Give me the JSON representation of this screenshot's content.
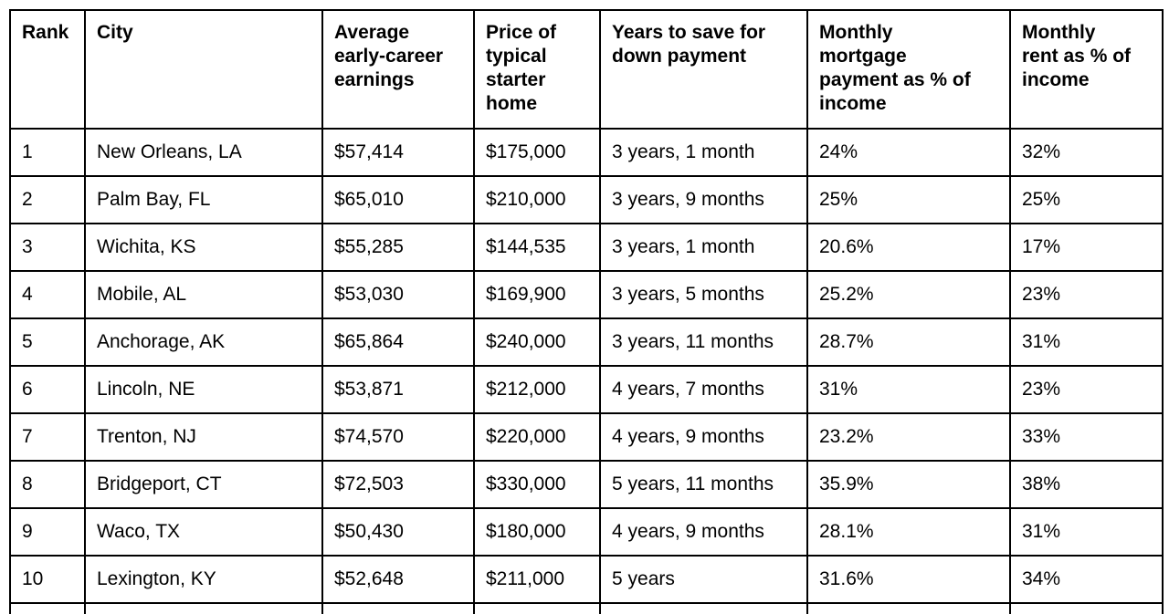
{
  "chart_data": {
    "type": "table",
    "title": "",
    "columns": [
      "Rank",
      "City",
      "Average early-career earnings",
      "Price of typical starter home",
      "Years to save for down payment",
      "Monthly mortgage payment as % of income",
      "Monthly rent as % of income"
    ],
    "rows": [
      [
        "1",
        "New Orleans, LA",
        "$57,414",
        "$175,000",
        "3 years, 1 month",
        "24%",
        "32%"
      ],
      [
        "2",
        "Palm Bay, FL",
        "$65,010",
        "$210,000",
        "3 years, 9 months",
        "25%",
        "25%"
      ],
      [
        "3",
        "Wichita, KS",
        "$55,285",
        "$144,535",
        "3 years, 1 month",
        "20.6%",
        "17%"
      ],
      [
        "4",
        "Mobile, AL",
        "$53,030",
        "$169,900",
        "3 years, 5 months",
        "25.2%",
        "23%"
      ],
      [
        "5",
        "Anchorage, AK",
        "$65,864",
        "$240,000",
        "3 years, 11 months",
        "28.7%",
        "31%"
      ],
      [
        "6",
        "Lincoln, NE",
        "$53,871",
        "$212,000",
        "4 years, 7 months",
        "31%",
        "23%"
      ],
      [
        "7",
        "Trenton, NJ",
        "$74,570",
        "$220,000",
        "4 years, 9 months",
        "23.2%",
        "33%"
      ],
      [
        "8",
        "Bridgeport, CT",
        "$72,503",
        "$330,000",
        "5 years, 11 months",
        "35.9%",
        "38%"
      ],
      [
        "9",
        "Waco, TX",
        "$50,430",
        "$180,000",
        "4 years, 9 months",
        "28.1%",
        "31%"
      ],
      [
        "10",
        "Lexington, KY",
        "$52,648",
        "$211,000",
        "5 years",
        "31.6%",
        "34%"
      ]
    ],
    "layout_hints": {
      "grid": "all-borders",
      "header_position": "top",
      "bottom_edge": "table cut off by viewport below last row"
    }
  },
  "table": {
    "header_wrapped": [
      "Rank",
      "City",
      "Average\nearly-career\nearnings",
      "Price of\ntypical\nstarter\nhome",
      "Years to save for\ndown payment",
      "Monthly\nmortgage\npayment as % of\nincome",
      "Monthly\nrent as % of\nincome"
    ]
  },
  "colors": {
    "background": "#ffffff",
    "border": "#000000",
    "text": "#000000"
  }
}
